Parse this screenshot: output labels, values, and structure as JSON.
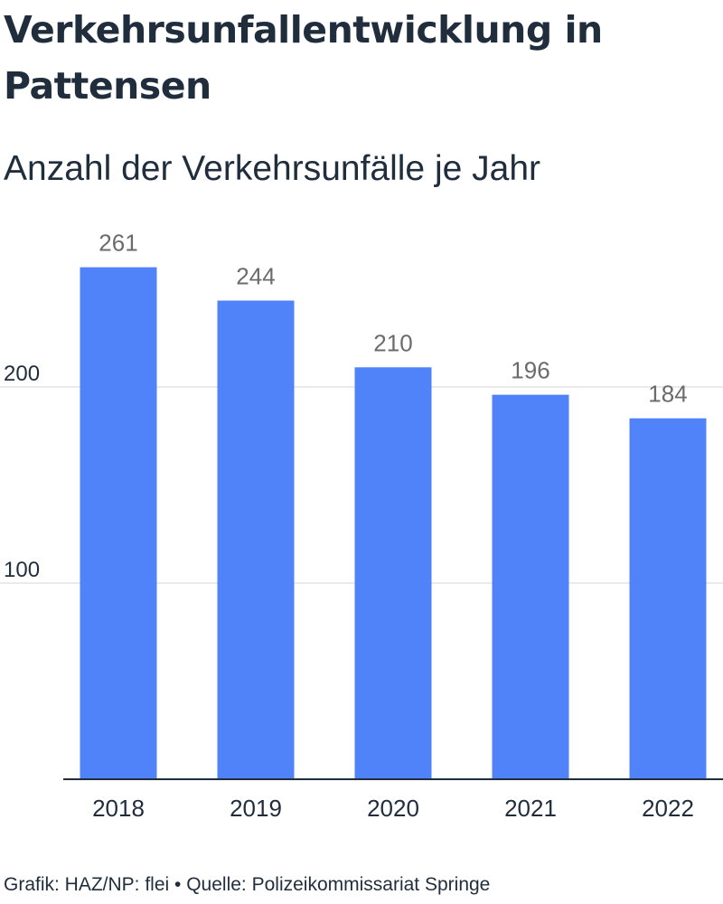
{
  "header": {
    "title": "Verkehrsunfallentwicklung in Pattensen",
    "subtitle": "Anzahl der Verkehrsunfälle je Jahr"
  },
  "footer": {
    "credit": "Grafik: HAZ/NP: flei • Quelle: Polizeikommissariat Springe"
  },
  "colors": {
    "bar": "#5082fa",
    "grid": "#e3e3e3",
    "axis": "#1f2d3d",
    "value_label": "#6b6b6b",
    "tick_label": "#1f2d3d"
  },
  "chart_data": {
    "type": "bar",
    "title": "Verkehrsunfallentwicklung in Pattensen",
    "subtitle": "Anzahl der Verkehrsunfälle je Jahr",
    "xlabel": "",
    "ylabel": "",
    "categories": [
      "2018",
      "2019",
      "2020",
      "2021",
      "2022"
    ],
    "values": [
      261,
      244,
      210,
      196,
      184
    ],
    "data_labels": [
      "261",
      "244",
      "210",
      "196",
      "184"
    ],
    "ylim": [
      0,
      275
    ],
    "yticks": [
      100,
      200
    ],
    "ytick_labels": [
      "100",
      "200"
    ],
    "grid": "horizontal",
    "legend": "none"
  }
}
